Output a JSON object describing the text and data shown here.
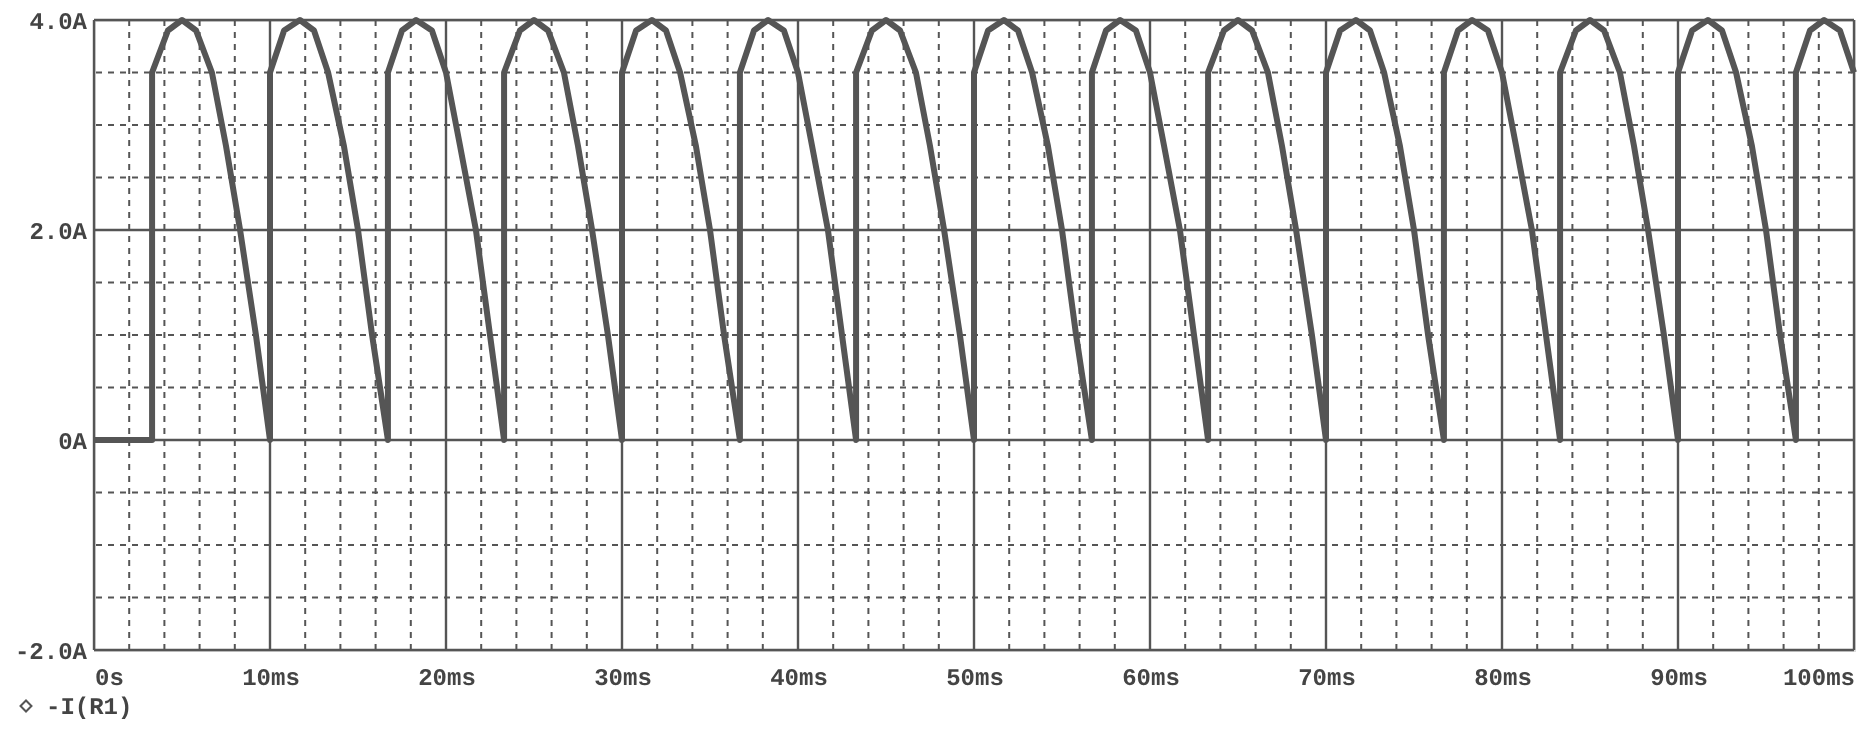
{
  "chart_data": {
    "type": "line",
    "series": [
      {
        "name": "-I(R1)",
        "color": "#555555",
        "x": [
          0,
          3.3,
          3.3,
          4.2,
          5,
          5.8,
          6.7,
          7.5,
          8.3,
          9.2,
          10,
          10,
          10.8,
          11.7,
          12.5,
          13.3,
          14.2,
          15,
          15.8,
          16.7,
          16.7,
          17.5,
          18.3,
          19.2,
          20,
          20.8,
          21.7,
          22.5,
          23.3,
          23.3,
          24.2,
          25,
          25.8,
          26.7,
          27.5,
          28.3,
          29.2,
          30,
          30,
          30.8,
          31.7,
          32.5,
          33.3,
          34.2,
          35,
          35.8,
          36.7,
          36.7,
          37.5,
          38.3,
          39.2,
          40,
          40.8,
          41.7,
          42.5,
          43.3,
          43.3,
          44.2,
          45,
          45.8,
          46.7,
          47.5,
          48.3,
          49.2,
          50,
          50,
          50.8,
          51.7,
          52.5,
          53.3,
          54.2,
          55,
          55.8,
          56.7,
          56.7,
          57.5,
          58.3,
          59.2,
          60,
          60.8,
          61.7,
          62.5,
          63.3,
          63.3,
          64.2,
          65,
          65.8,
          66.7,
          67.5,
          68.3,
          69.2,
          70,
          70,
          70.8,
          71.7,
          72.5,
          73.3,
          74.2,
          75,
          75.8,
          76.7,
          76.7,
          77.5,
          78.3,
          79.2,
          80,
          80.8,
          81.7,
          82.5,
          83.3,
          83.3,
          84.2,
          85,
          85.8,
          86.7,
          87.5,
          88.3,
          89.2,
          90,
          90,
          90.8,
          91.7,
          92.5,
          93.3,
          94.2,
          95,
          95.8,
          96.7,
          96.7,
          97.5,
          98.3,
          99.2,
          100
        ],
        "values": [
          0,
          0,
          3.5,
          3.9,
          4.0,
          3.9,
          3.5,
          2.8,
          2.0,
          1.0,
          0,
          3.5,
          3.9,
          4.0,
          3.9,
          3.5,
          2.8,
          2.0,
          1.0,
          0,
          3.5,
          3.9,
          4.0,
          3.9,
          3.5,
          2.8,
          2.0,
          1.0,
          0,
          3.5,
          3.9,
          4.0,
          3.9,
          3.5,
          2.8,
          2.0,
          1.0,
          0,
          3.5,
          3.9,
          4.0,
          3.9,
          3.5,
          2.8,
          2.0,
          1.0,
          0,
          3.5,
          3.9,
          4.0,
          3.9,
          3.5,
          2.8,
          2.0,
          1.0,
          0,
          3.5,
          3.9,
          4.0,
          3.9,
          3.5,
          2.8,
          2.0,
          1.0,
          0,
          3.5,
          3.9,
          4.0,
          3.9,
          3.5,
          2.8,
          2.0,
          1.0,
          0,
          3.5,
          3.9,
          4.0,
          3.9,
          3.5,
          2.8,
          2.0,
          1.0,
          0,
          3.5,
          3.9,
          4.0,
          3.9,
          3.5,
          2.8,
          2.0,
          1.0,
          0,
          3.5,
          3.9,
          4.0,
          3.9,
          3.5,
          2.8,
          2.0,
          1.0,
          0,
          3.5,
          3.9,
          4.0,
          3.9,
          3.5,
          2.8,
          2.0,
          1.0,
          0,
          3.5,
          3.9,
          4.0,
          3.9,
          3.5,
          2.8,
          2.0,
          1.0,
          0,
          3.5,
          3.9,
          4.0,
          3.9,
          3.5,
          2.8,
          2.0,
          1.0,
          0,
          3.5,
          3.9,
          4.0,
          3.9,
          3.5
        ]
      }
    ],
    "xlim": [
      0,
      100
    ],
    "ylim": [
      -2,
      4
    ],
    "xticks": [
      {
        "value": 0,
        "label": "0s"
      },
      {
        "value": 2,
        "label": null
      },
      {
        "value": 4,
        "label": null
      },
      {
        "value": 6,
        "label": null
      },
      {
        "value": 8,
        "label": null
      },
      {
        "value": 10,
        "label": "10ms"
      },
      {
        "value": 12,
        "label": null
      },
      {
        "value": 14,
        "label": null
      },
      {
        "value": 16,
        "label": null
      },
      {
        "value": 18,
        "label": null
      },
      {
        "value": 20,
        "label": "20ms"
      },
      {
        "value": 22,
        "label": null
      },
      {
        "value": 24,
        "label": null
      },
      {
        "value": 26,
        "label": null
      },
      {
        "value": 28,
        "label": null
      },
      {
        "value": 30,
        "label": "30ms"
      },
      {
        "value": 32,
        "label": null
      },
      {
        "value": 34,
        "label": null
      },
      {
        "value": 36,
        "label": null
      },
      {
        "value": 38,
        "label": null
      },
      {
        "value": 40,
        "label": "40ms"
      },
      {
        "value": 42,
        "label": null
      },
      {
        "value": 44,
        "label": null
      },
      {
        "value": 46,
        "label": null
      },
      {
        "value": 48,
        "label": null
      },
      {
        "value": 50,
        "label": "50ms"
      },
      {
        "value": 52,
        "label": null
      },
      {
        "value": 54,
        "label": null
      },
      {
        "value": 56,
        "label": null
      },
      {
        "value": 58,
        "label": null
      },
      {
        "value": 60,
        "label": "60ms"
      },
      {
        "value": 62,
        "label": null
      },
      {
        "value": 64,
        "label": null
      },
      {
        "value": 66,
        "label": null
      },
      {
        "value": 68,
        "label": null
      },
      {
        "value": 70,
        "label": "70ms"
      },
      {
        "value": 72,
        "label": null
      },
      {
        "value": 74,
        "label": null
      },
      {
        "value": 76,
        "label": null
      },
      {
        "value": 78,
        "label": null
      },
      {
        "value": 80,
        "label": "80ms"
      },
      {
        "value": 82,
        "label": null
      },
      {
        "value": 84,
        "label": null
      },
      {
        "value": 86,
        "label": null
      },
      {
        "value": 88,
        "label": null
      },
      {
        "value": 90,
        "label": "90ms"
      },
      {
        "value": 92,
        "label": null
      },
      {
        "value": 94,
        "label": null
      },
      {
        "value": 96,
        "label": null
      },
      {
        "value": 98,
        "label": null
      },
      {
        "value": 100,
        "label": "100ms"
      }
    ],
    "yticks": [
      {
        "value": -2,
        "label": "-2.0A"
      },
      {
        "value": -1.5,
        "label": null
      },
      {
        "value": -1,
        "label": null
      },
      {
        "value": -0.5,
        "label": null
      },
      {
        "value": 0,
        "label": "0A"
      },
      {
        "value": 0.5,
        "label": null
      },
      {
        "value": 1,
        "label": null
      },
      {
        "value": 1.5,
        "label": null
      },
      {
        "value": 2,
        "label": "2.0A"
      },
      {
        "value": 2.5,
        "label": null
      },
      {
        "value": 3,
        "label": null
      },
      {
        "value": 3.5,
        "label": null
      },
      {
        "value": 4,
        "label": "4.0A"
      }
    ],
    "grid": true,
    "legend": "bottom left",
    "line_style": "solid"
  }
}
